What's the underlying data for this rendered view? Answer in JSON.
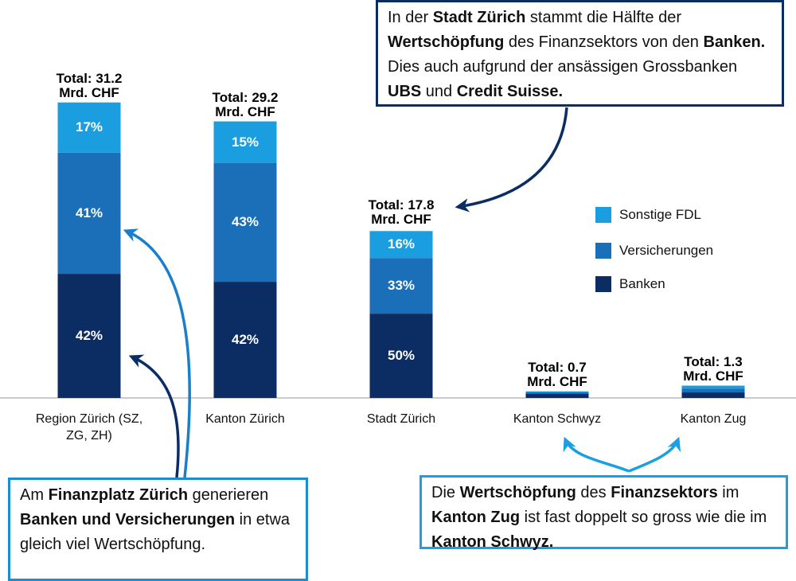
{
  "chart_data": {
    "type": "stacked_bar",
    "categories": [
      "Region Zürich (SZ,\nZG, ZH)",
      "Kanton Zürich",
      "Stadt Zürich",
      "Kanton Schwyz",
      "Kanton Zug"
    ],
    "totals": {
      "values": [
        31.2,
        29.2,
        17.8,
        0.7,
        1.3
      ],
      "value_labels": [
        "Total: 31.2\nMrd. CHF",
        "Total: 29.2\nMrd. CHF",
        "Total: 17.8\nMrd. CHF",
        "Total: 0.7\nMrd. CHF",
        "Total: 1.3\nMrd. CHF"
      ]
    },
    "series": [
      {
        "name": "Banken",
        "color": "#0b2d63",
        "values": [
          42,
          42,
          50,
          60,
          45
        ],
        "value_labels": [
          "42%",
          "42%",
          "50%",
          null,
          null
        ]
      },
      {
        "name": "Versicherungen",
        "color": "#1a6fb8",
        "values": [
          41,
          43,
          33,
          25,
          30
        ],
        "value_labels": [
          "41%",
          "43%",
          "33%",
          null,
          null
        ]
      },
      {
        "name": "Sonstige FDL",
        "color": "#1a9ee0",
        "values": [
          17,
          15,
          16,
          15,
          25
        ],
        "value_labels": [
          "17%",
          "15%",
          "16%",
          null,
          null
        ]
      }
    ],
    "annotations": [
      {
        "parts": [
          {
            "text": "In der "
          },
          {
            "text": "Stadt Zürich",
            "bold": true
          },
          {
            "text": " stammt die Hälfte der "
          },
          {
            "text": "Wertschöpfung",
            "bold": true
          },
          {
            "text": " des Finanzsektors von den "
          },
          {
            "text": "Banken.",
            "bold": true
          },
          {
            "text": " Dies auch aufgrund der ansässigen Grossbanken "
          },
          {
            "text": "UBS",
            "bold": true
          },
          {
            "text": " und "
          },
          {
            "text": "Credit Suisse.",
            "bold": true
          }
        ]
      },
      {
        "parts": [
          {
            "text": "Am "
          },
          {
            "text": "Finanzplatz Zürich",
            "bold": true
          },
          {
            "text": " generieren "
          },
          {
            "text": "Banken und Versicherungen",
            "bold": true
          },
          {
            "text": " in etwa gleich viel Wertschöpfung."
          }
        ]
      },
      {
        "parts": [
          {
            "text": "Die "
          },
          {
            "text": "Wertschöpfung",
            "bold": true
          },
          {
            "text": " des "
          },
          {
            "text": "Finanzsektors",
            "bold": true
          },
          {
            "text": " im "
          },
          {
            "text": "Kanton Zug",
            "bold": true
          },
          {
            "text": " ist fast doppelt so gross wie die im "
          },
          {
            "text": "Kanton Schwyz.",
            "bold": true
          }
        ]
      }
    ]
  }
}
